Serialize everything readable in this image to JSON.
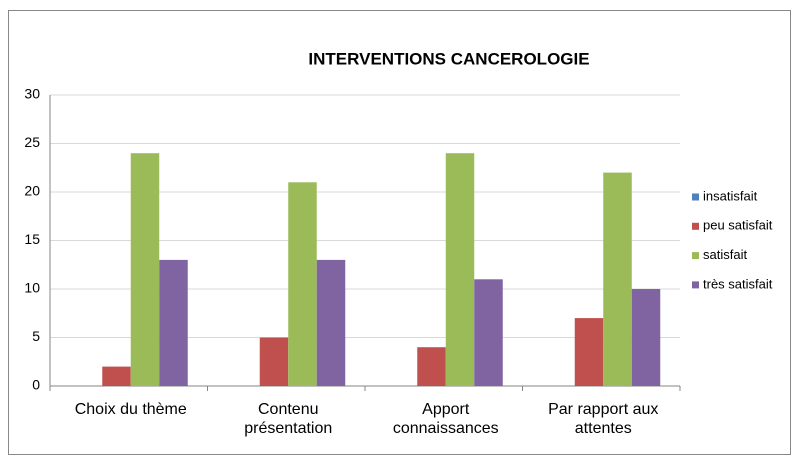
{
  "chart_data": {
    "type": "bar",
    "title": "INTERVENTIONS CANCEROLOGIE",
    "categories": [
      "Choix du thème",
      "Contenu présentation",
      "Apport connaissances",
      "Par rapport aux attentes"
    ],
    "series": [
      {
        "name": "insatisfait",
        "color": "#4f81bd",
        "values": [
          0,
          0,
          0,
          0
        ]
      },
      {
        "name": "peu satisfait",
        "color": "#c0504d",
        "values": [
          2,
          5,
          4,
          7
        ]
      },
      {
        "name": "satisfait",
        "color": "#9bbb59",
        "values": [
          24,
          21,
          24,
          22
        ]
      },
      {
        "name": "très satisfait",
        "color": "#8064a2",
        "values": [
          13,
          13,
          11,
          10
        ]
      }
    ],
    "ylim": [
      0,
      30
    ],
    "yticks": [
      0,
      5,
      10,
      15,
      20,
      25,
      30
    ],
    "grid": true,
    "legend": "right"
  }
}
